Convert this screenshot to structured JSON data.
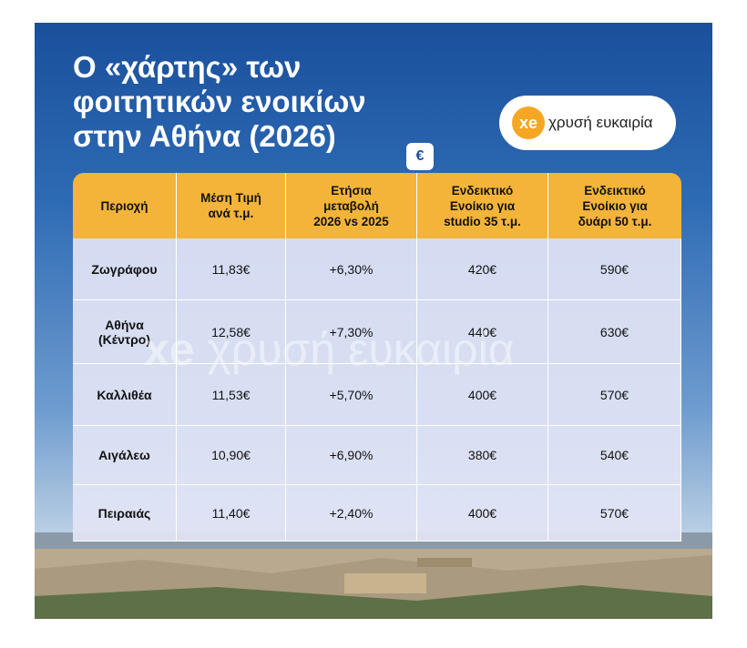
{
  "title": {
    "lines": [
      "Ο «χάρτης» των",
      "φοιτητικών ενοικίων",
      "στην Αθήνα (2026)"
    ]
  },
  "logo": {
    "mark": "xe",
    "text": "χρυσή ευκαιρία"
  },
  "badge": "€",
  "watermark": {
    "mark": "xe",
    "text": "χρυσή ευκαιρία"
  },
  "table": {
    "header": [
      [
        "Περιοχή"
      ],
      [
        "Μέση Τιμή",
        "ανά τ.μ."
      ],
      [
        "Ετήσια",
        "μεταβολή",
        "2026 vs 2025"
      ],
      [
        "Ενδεικτικό",
        "Ενοίκιο για",
        "studio 35 τ.μ."
      ],
      [
        "Ενδεικτικό",
        "Ενοίκιο για",
        "δυάρι 50 τ.μ."
      ]
    ],
    "rows": [
      [
        [
          "Ζωγράφου"
        ],
        "11,83€",
        "+6,30%",
        "420€",
        "590€"
      ],
      [
        [
          "Αθήνα",
          "(Κέντρο)"
        ],
        "12,58€",
        "+7,30%",
        "440€",
        "630€"
      ],
      [
        [
          "Καλλιθέα"
        ],
        "11,53€",
        "+5,70%",
        "400€",
        "570€"
      ],
      [
        [
          "Αιγάλεω"
        ],
        "10,90€",
        "+6,90%",
        "380€",
        "540€"
      ],
      [
        [
          "Πειραιάς"
        ],
        "11,40€",
        "+2,40%",
        "400€",
        "570€"
      ]
    ]
  }
}
